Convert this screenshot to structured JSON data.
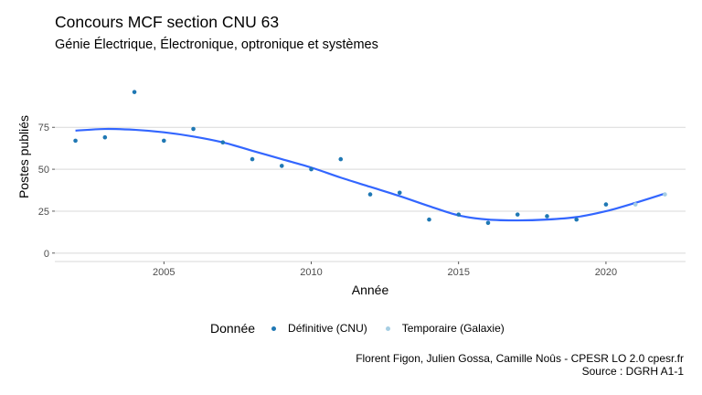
{
  "title": "Concours MCF section CNU 63",
  "subtitle": "Génie Électrique, Électronique, optronique et systèmes",
  "caption": {
    "line1": "Florent Figon, Julien Gossa, Camille Noûs - CPESR LO 2.0 cpesr.fr",
    "line2": "Source : DGRH A1-1"
  },
  "colors": {
    "definitive": "#1f78b4",
    "temporaire": "#a6cee3",
    "smooth": "#3366ff",
    "grid": "#d9d9d9"
  },
  "chart_data": {
    "type": "scatter",
    "xlabel": "Année",
    "ylabel": "Postes publiés",
    "xlim": [
      2001.3,
      2022.7
    ],
    "ylim": [
      -5,
      98
    ],
    "x_ticks": [
      2005,
      2010,
      2015,
      2020
    ],
    "y_ticks": [
      0,
      25,
      50,
      75
    ],
    "grid": true,
    "legend": {
      "title": "Donnée",
      "placement": "bottom",
      "items": [
        {
          "label": "Définitive (CNU)",
          "color_key": "definitive"
        },
        {
          "label": "Temporaire (Galaxie)",
          "color_key": "temporaire"
        }
      ]
    },
    "series": [
      {
        "name": "Définitive (CNU)",
        "x": [
          2002,
          2003,
          2004,
          2005,
          2006,
          2007,
          2008,
          2009,
          2010,
          2011,
          2012,
          2013,
          2014,
          2015,
          2016,
          2017,
          2018,
          2019,
          2020
        ],
        "y": [
          67,
          69,
          96,
          67,
          74,
          66,
          56,
          52,
          50,
          56,
          35,
          36,
          20,
          23,
          18,
          23,
          22,
          20,
          29
        ]
      },
      {
        "name": "Temporaire (Galaxie)",
        "x": [
          2021,
          2022
        ],
        "y": [
          29,
          35
        ]
      }
    ],
    "smooth": {
      "x": [
        2002,
        2003,
        2004,
        2005,
        2006,
        2007,
        2008,
        2009,
        2010,
        2011,
        2012,
        2013,
        2014,
        2015,
        2016,
        2017,
        2018,
        2019,
        2020,
        2021,
        2022
      ],
      "y": [
        73,
        74,
        73.5,
        72,
        69.5,
        66,
        61,
        56,
        51,
        45,
        39.5,
        34,
        28,
        22.5,
        20,
        19.5,
        20,
        21.5,
        25,
        30,
        35.5
      ]
    }
  }
}
